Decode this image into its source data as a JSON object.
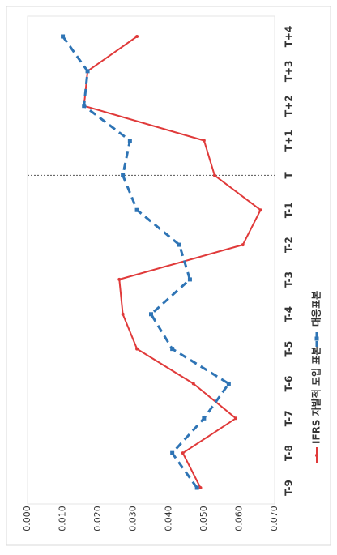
{
  "chart_data": {
    "type": "line",
    "orientation": "rotated-90-clockwise",
    "title": "",
    "xlabel": "",
    "ylabel": "",
    "categories": [
      "T-9",
      "T-8",
      "T-7",
      "T-6",
      "T-5",
      "T-4",
      "T-3",
      "T-2",
      "T-1",
      "T",
      "T+1",
      "T+2",
      "T+3",
      "T+4"
    ],
    "ylim": [
      0,
      0.07
    ],
    "y_ticks": [
      "0.000",
      "0.010",
      "0.020",
      "0.030",
      "0.040",
      "0.050",
      "0.060",
      "0.070"
    ],
    "grid": false,
    "reference_line": {
      "category": "T",
      "style": "dotted"
    },
    "legend_position": "bottom",
    "series": [
      {
        "name": "IFRS 자발적 도입 표본",
        "color": "#e03a3a",
        "style": "solid",
        "values": [
          0.049,
          0.044,
          0.059,
          0.047,
          0.031,
          0.027,
          0.026,
          0.061,
          0.066,
          0.053,
          0.05,
          0.016,
          0.017,
          0.031
        ]
      },
      {
        "name": "대응표본",
        "color": "#2e74b5",
        "style": "dashed",
        "values": [
          0.048,
          0.041,
          0.05,
          0.057,
          0.041,
          0.035,
          0.046,
          0.043,
          0.031,
          0.027,
          0.029,
          0.016,
          0.017,
          0.01
        ]
      }
    ]
  }
}
